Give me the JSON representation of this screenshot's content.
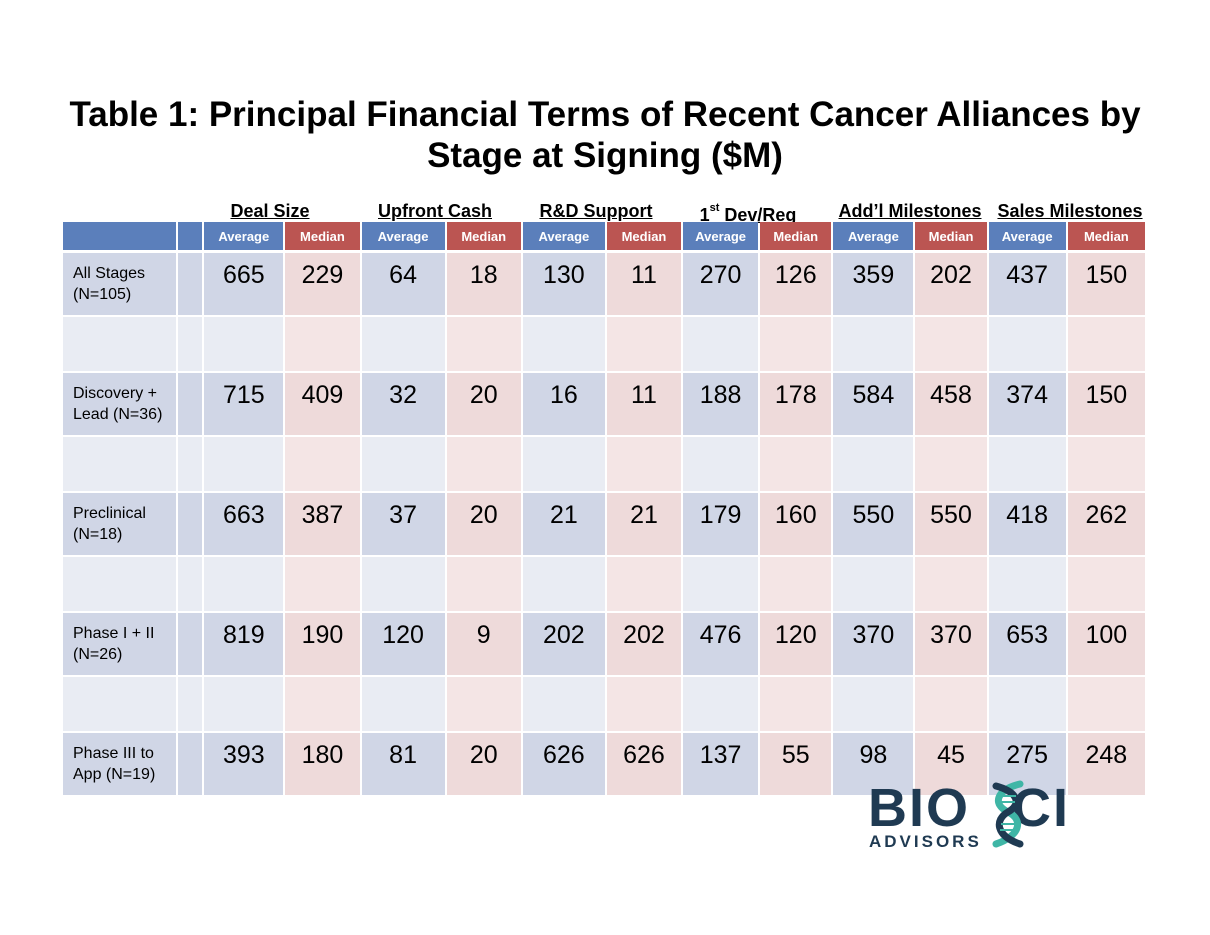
{
  "title": {
    "line1": "Table 1:  Principal Financial Terms of Recent Cancer Alliances by",
    "line2": "Stage at Signing ($M)"
  },
  "groups": {
    "deal_size": "Deal Size",
    "upfront_cash": "Upfront Cash",
    "rd_support": "R&D Support",
    "dev_reg_num": "1",
    "dev_reg_sup": "st",
    "dev_reg_rest": " Dev/Reg",
    "addl_milestones": "Add’l Milestones",
    "sales_milestones": "Sales Milestones"
  },
  "subheaders": {
    "average": "Average",
    "median": "Median"
  },
  "rows": [
    {
      "label1": "All Stages",
      "label2": "(N=105)",
      "values": [
        "665",
        "229",
        "64",
        "18",
        "130",
        "11",
        "270",
        "126",
        "359",
        "202",
        "437",
        "150"
      ]
    },
    {
      "label1": "Discovery +",
      "label2": "Lead (N=36)",
      "values": [
        "715",
        "409",
        "32",
        "20",
        "16",
        "11",
        "188",
        "178",
        "584",
        "458",
        "374",
        "150"
      ]
    },
    {
      "label1": "Preclinical",
      "label2": "(N=18)",
      "values": [
        "663",
        "387",
        "37",
        "20",
        "21",
        "21",
        "179",
        "160",
        "550",
        "550",
        "418",
        "262"
      ]
    },
    {
      "label1": "Phase I + II",
      "label2": "(N=26)",
      "values": [
        "819",
        "190",
        "120",
        "9",
        "202",
        "202",
        "476",
        "120",
        "370",
        "370",
        "653",
        "100"
      ]
    },
    {
      "label1": "Phase III to",
      "label2": "App (N=19)",
      "values": [
        "393",
        "180",
        "81",
        "20",
        "626",
        "626",
        "137",
        "55",
        "98",
        "45",
        "275",
        "248"
      ]
    }
  ],
  "logo": {
    "main_left": "BIO",
    "main_right": "CI",
    "sub": "ADVISORS"
  },
  "colors": {
    "average_header": "#5b7fbb",
    "median_header": "#bb5552",
    "logo_navy": "#1f3a52",
    "logo_teal": "#3fb6a6"
  }
}
